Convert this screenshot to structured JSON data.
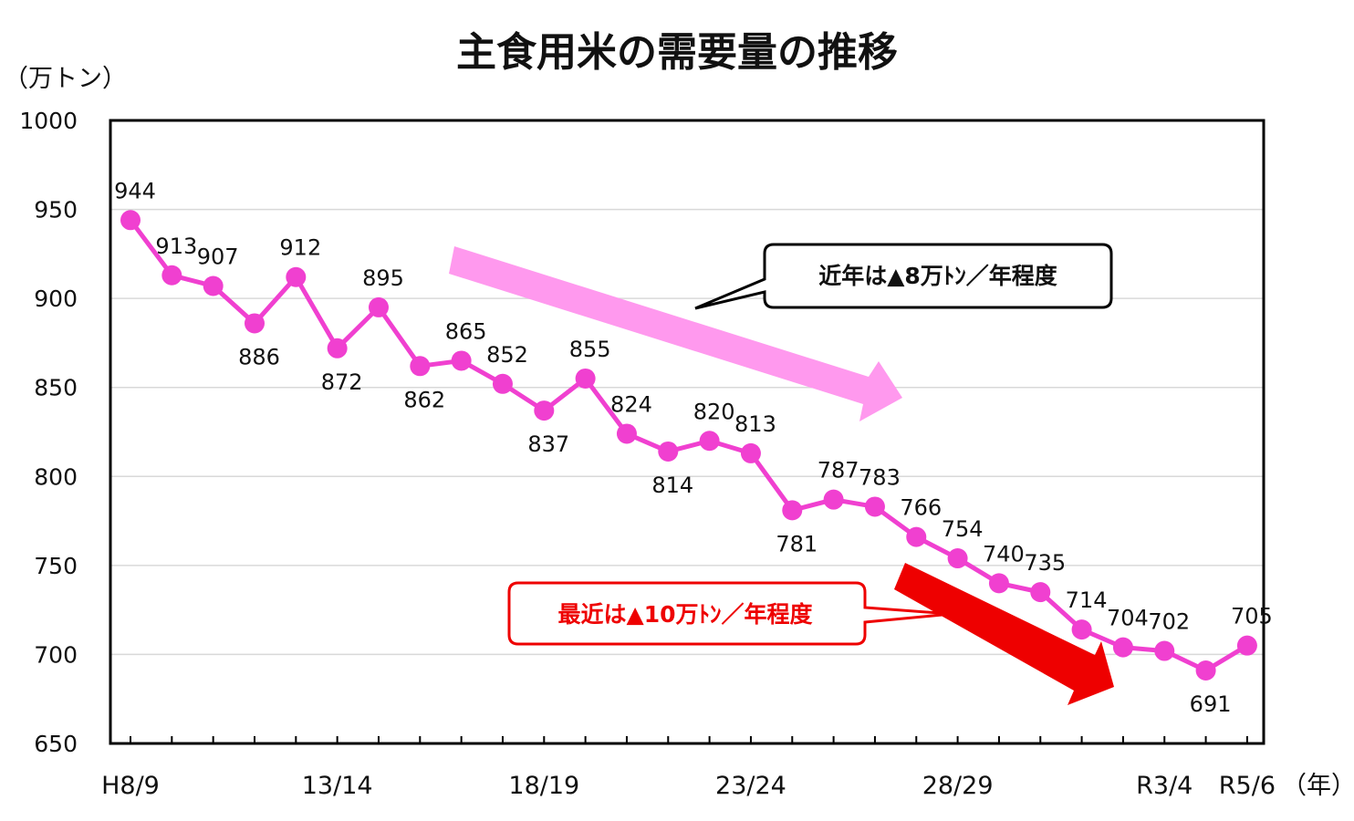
{
  "chart_data": {
    "type": "line",
    "title": "主食用米の需要量の推移",
    "ylabel": "（万トン）",
    "xlabel": "（年）",
    "ylim": [
      650,
      1000
    ],
    "yticks": [
      650,
      700,
      750,
      800,
      850,
      900,
      950,
      1000
    ],
    "xtick_labels": [
      {
        "index": 0,
        "label": "H8/9"
      },
      {
        "index": 5,
        "label": "13/14"
      },
      {
        "index": 10,
        "label": "18/19"
      },
      {
        "index": 15,
        "label": "23/24"
      },
      {
        "index": 20,
        "label": "28/29"
      },
      {
        "index": 25,
        "label": "R3/4"
      },
      {
        "index": 27,
        "label": "R5/6"
      }
    ],
    "grid": true,
    "series": [
      {
        "color": "#f040d0",
        "values": [
          944,
          913,
          907,
          886,
          912,
          872,
          895,
          862,
          865,
          852,
          837,
          855,
          824,
          814,
          820,
          813,
          781,
          787,
          783,
          766,
          754,
          740,
          735,
          714,
          704,
          702,
          691,
          705
        ]
      }
    ],
    "annotations": [
      {
        "text": "近年は▲8万ﾄﾝ／年程度",
        "color": "#111111",
        "arrow_color": "#ff99ee"
      },
      {
        "text": "最近は▲10万ﾄﾝ／年程度",
        "color": "#ee0000",
        "arrow_color": "#ee0000"
      }
    ]
  }
}
